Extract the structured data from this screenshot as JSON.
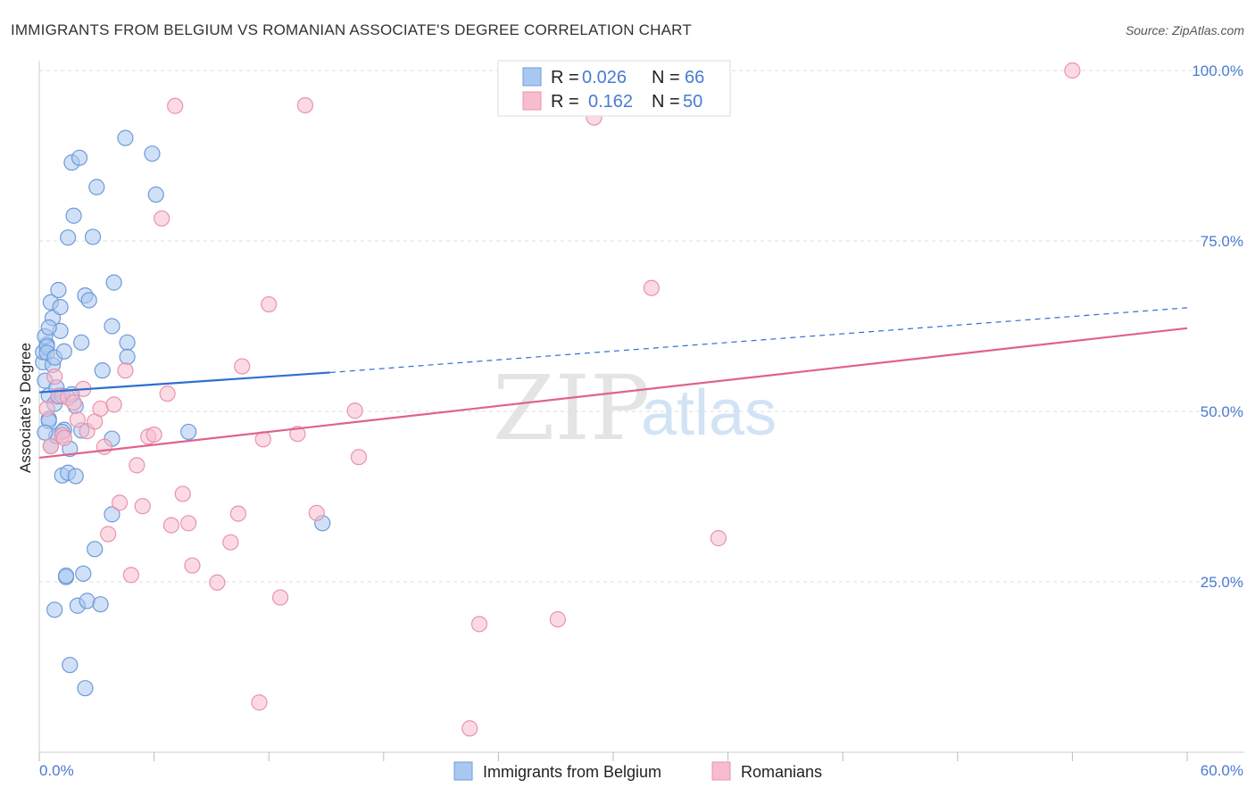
{
  "header": {
    "title": "IMMIGRANTS FROM BELGIUM VS ROMANIAN ASSOCIATE'S DEGREE CORRELATION CHART",
    "source": "Source: ZipAtlas.com"
  },
  "watermark": {
    "zip": "ZIP",
    "atlas": "atlas"
  },
  "colors": {
    "blue_fill": "#a9c8f0",
    "blue_stroke": "#6f9ad8",
    "blue_line": "#2d6fd0",
    "pink_fill": "#f7bccd",
    "pink_stroke": "#e893ae",
    "pink_line": "#e0628c",
    "grid": "#dddddd",
    "axis_text": "#4a7bd0"
  },
  "legend_top": {
    "rows": [
      {
        "r_label": "R =",
        "r_value": "0.026",
        "n_label": "N =",
        "n_value": "66"
      },
      {
        "r_label": "R =",
        "r_value": "0.162",
        "n_label": "N =",
        "n_value": "50"
      }
    ]
  },
  "chart_data": {
    "type": "scatter",
    "title": "IMMIGRANTS FROM BELGIUM VS ROMANIAN ASSOCIATE'S DEGREE CORRELATION CHART",
    "xlabel": "",
    "ylabel": "Associate's Degree",
    "xlim": [
      0,
      60
    ],
    "ylim": [
      0,
      105
    ],
    "x_tick_labels": [
      "0.0%",
      "60.0%"
    ],
    "y_ticks": [
      {
        "value": 25,
        "label": "25.0%"
      },
      {
        "value": 50,
        "label": "50.0%"
      },
      {
        "value": 75,
        "label": "75.0%"
      },
      {
        "value": 100,
        "label": "100.0%"
      }
    ],
    "grid": true,
    "series": [
      {
        "name": "Immigrants from Belgium",
        "r": 0.026,
        "n": 66,
        "trend": {
          "x_start": 0,
          "y_start": 52.8,
          "x_solid_end": 15.2,
          "y_solid_end": 55.7,
          "x_end": 60,
          "y_end": 65.2
        },
        "points": [
          [
            0.3,
            54.5
          ],
          [
            0.2,
            57.2
          ],
          [
            0.2,
            58.7
          ],
          [
            0.4,
            59.8
          ],
          [
            0.3,
            61.0
          ],
          [
            0.4,
            59.5
          ],
          [
            0.4,
            58.6
          ],
          [
            0.5,
            52.3
          ],
          [
            0.5,
            48.9
          ],
          [
            0.5,
            48.6
          ],
          [
            0.6,
            44.9
          ],
          [
            0.6,
            66.0
          ],
          [
            0.7,
            63.7
          ],
          [
            0.7,
            56.8
          ],
          [
            0.8,
            57.9
          ],
          [
            0.8,
            51.1
          ],
          [
            0.9,
            53.5
          ],
          [
            0.9,
            46.4
          ],
          [
            1.0,
            67.8
          ],
          [
            1.0,
            52.2
          ],
          [
            1.1,
            65.3
          ],
          [
            1.1,
            61.8
          ],
          [
            1.2,
            40.6
          ],
          [
            1.2,
            52.3
          ],
          [
            1.3,
            58.8
          ],
          [
            1.3,
            47.3
          ],
          [
            1.4,
            25.7
          ],
          [
            1.4,
            25.9
          ],
          [
            1.5,
            75.5
          ],
          [
            1.5,
            41.0
          ],
          [
            1.6,
            44.5
          ],
          [
            1.6,
            12.8
          ],
          [
            1.7,
            86.5
          ],
          [
            1.8,
            78.7
          ],
          [
            1.9,
            50.8
          ],
          [
            1.9,
            40.5
          ],
          [
            2.0,
            21.5
          ],
          [
            2.1,
            87.2
          ],
          [
            2.2,
            60.1
          ],
          [
            2.3,
            26.2
          ],
          [
            2.4,
            67.0
          ],
          [
            2.4,
            9.4
          ],
          [
            2.5,
            22.2
          ],
          [
            2.6,
            66.3
          ],
          [
            2.8,
            75.6
          ],
          [
            2.9,
            29.8
          ],
          [
            3.0,
            82.9
          ],
          [
            3.2,
            21.7
          ],
          [
            3.3,
            56.0
          ],
          [
            3.8,
            46.0
          ],
          [
            3.8,
            62.5
          ],
          [
            3.8,
            34.9
          ],
          [
            3.9,
            68.9
          ],
          [
            4.5,
            90.1
          ],
          [
            4.6,
            60.1
          ],
          [
            4.6,
            58.0
          ],
          [
            5.9,
            87.8
          ],
          [
            6.1,
            81.8
          ],
          [
            7.8,
            47.0
          ],
          [
            14.8,
            33.6
          ],
          [
            0.3,
            46.9
          ],
          [
            0.5,
            62.3
          ],
          [
            0.8,
            20.9
          ],
          [
            1.2,
            47.0
          ],
          [
            1.7,
            52.5
          ],
          [
            2.2,
            47.2
          ]
        ]
      },
      {
        "name": "Romanians",
        "r": 0.162,
        "n": 50,
        "trend": {
          "x_start": 0,
          "y_start": 43.2,
          "x_end": 60,
          "y_end": 62.2
        },
        "points": [
          [
            0.4,
            50.4
          ],
          [
            0.8,
            55.1
          ],
          [
            1.0,
            52.3
          ],
          [
            1.2,
            46.5
          ],
          [
            1.5,
            52.0
          ],
          [
            1.8,
            51.3
          ],
          [
            2.0,
            48.8
          ],
          [
            2.3,
            53.3
          ],
          [
            2.5,
            47.1
          ],
          [
            2.9,
            48.5
          ],
          [
            3.2,
            50.4
          ],
          [
            3.4,
            44.8
          ],
          [
            3.6,
            32.0
          ],
          [
            3.9,
            51.0
          ],
          [
            4.2,
            36.6
          ],
          [
            4.5,
            56.0
          ],
          [
            4.8,
            26.0
          ],
          [
            5.1,
            42.1
          ],
          [
            5.4,
            36.1
          ],
          [
            5.7,
            46.3
          ],
          [
            6.0,
            46.6
          ],
          [
            6.4,
            78.3
          ],
          [
            6.7,
            52.6
          ],
          [
            6.9,
            33.3
          ],
          [
            7.1,
            94.8
          ],
          [
            7.5,
            37.9
          ],
          [
            7.8,
            33.6
          ],
          [
            8.0,
            27.4
          ],
          [
            9.3,
            24.9
          ],
          [
            10.0,
            30.8
          ],
          [
            10.4,
            35.0
          ],
          [
            10.6,
            56.6
          ],
          [
            11.5,
            7.3
          ],
          [
            11.7,
            45.9
          ],
          [
            12.0,
            65.7
          ],
          [
            12.6,
            22.7
          ],
          [
            13.5,
            46.7
          ],
          [
            13.9,
            94.9
          ],
          [
            14.5,
            35.1
          ],
          [
            16.5,
            50.1
          ],
          [
            16.7,
            43.3
          ],
          [
            22.5,
            3.5
          ],
          [
            23.0,
            18.8
          ],
          [
            27.1,
            19.5
          ],
          [
            29.0,
            93.1
          ],
          [
            32.0,
            68.1
          ],
          [
            35.5,
            31.4
          ],
          [
            54.0,
            100.0
          ],
          [
            0.6,
            44.9
          ],
          [
            1.3,
            46.1
          ]
        ]
      }
    ]
  },
  "legend_bottom": {
    "items": [
      {
        "label": "Immigrants from Belgium"
      },
      {
        "label": "Romanians"
      }
    ]
  }
}
